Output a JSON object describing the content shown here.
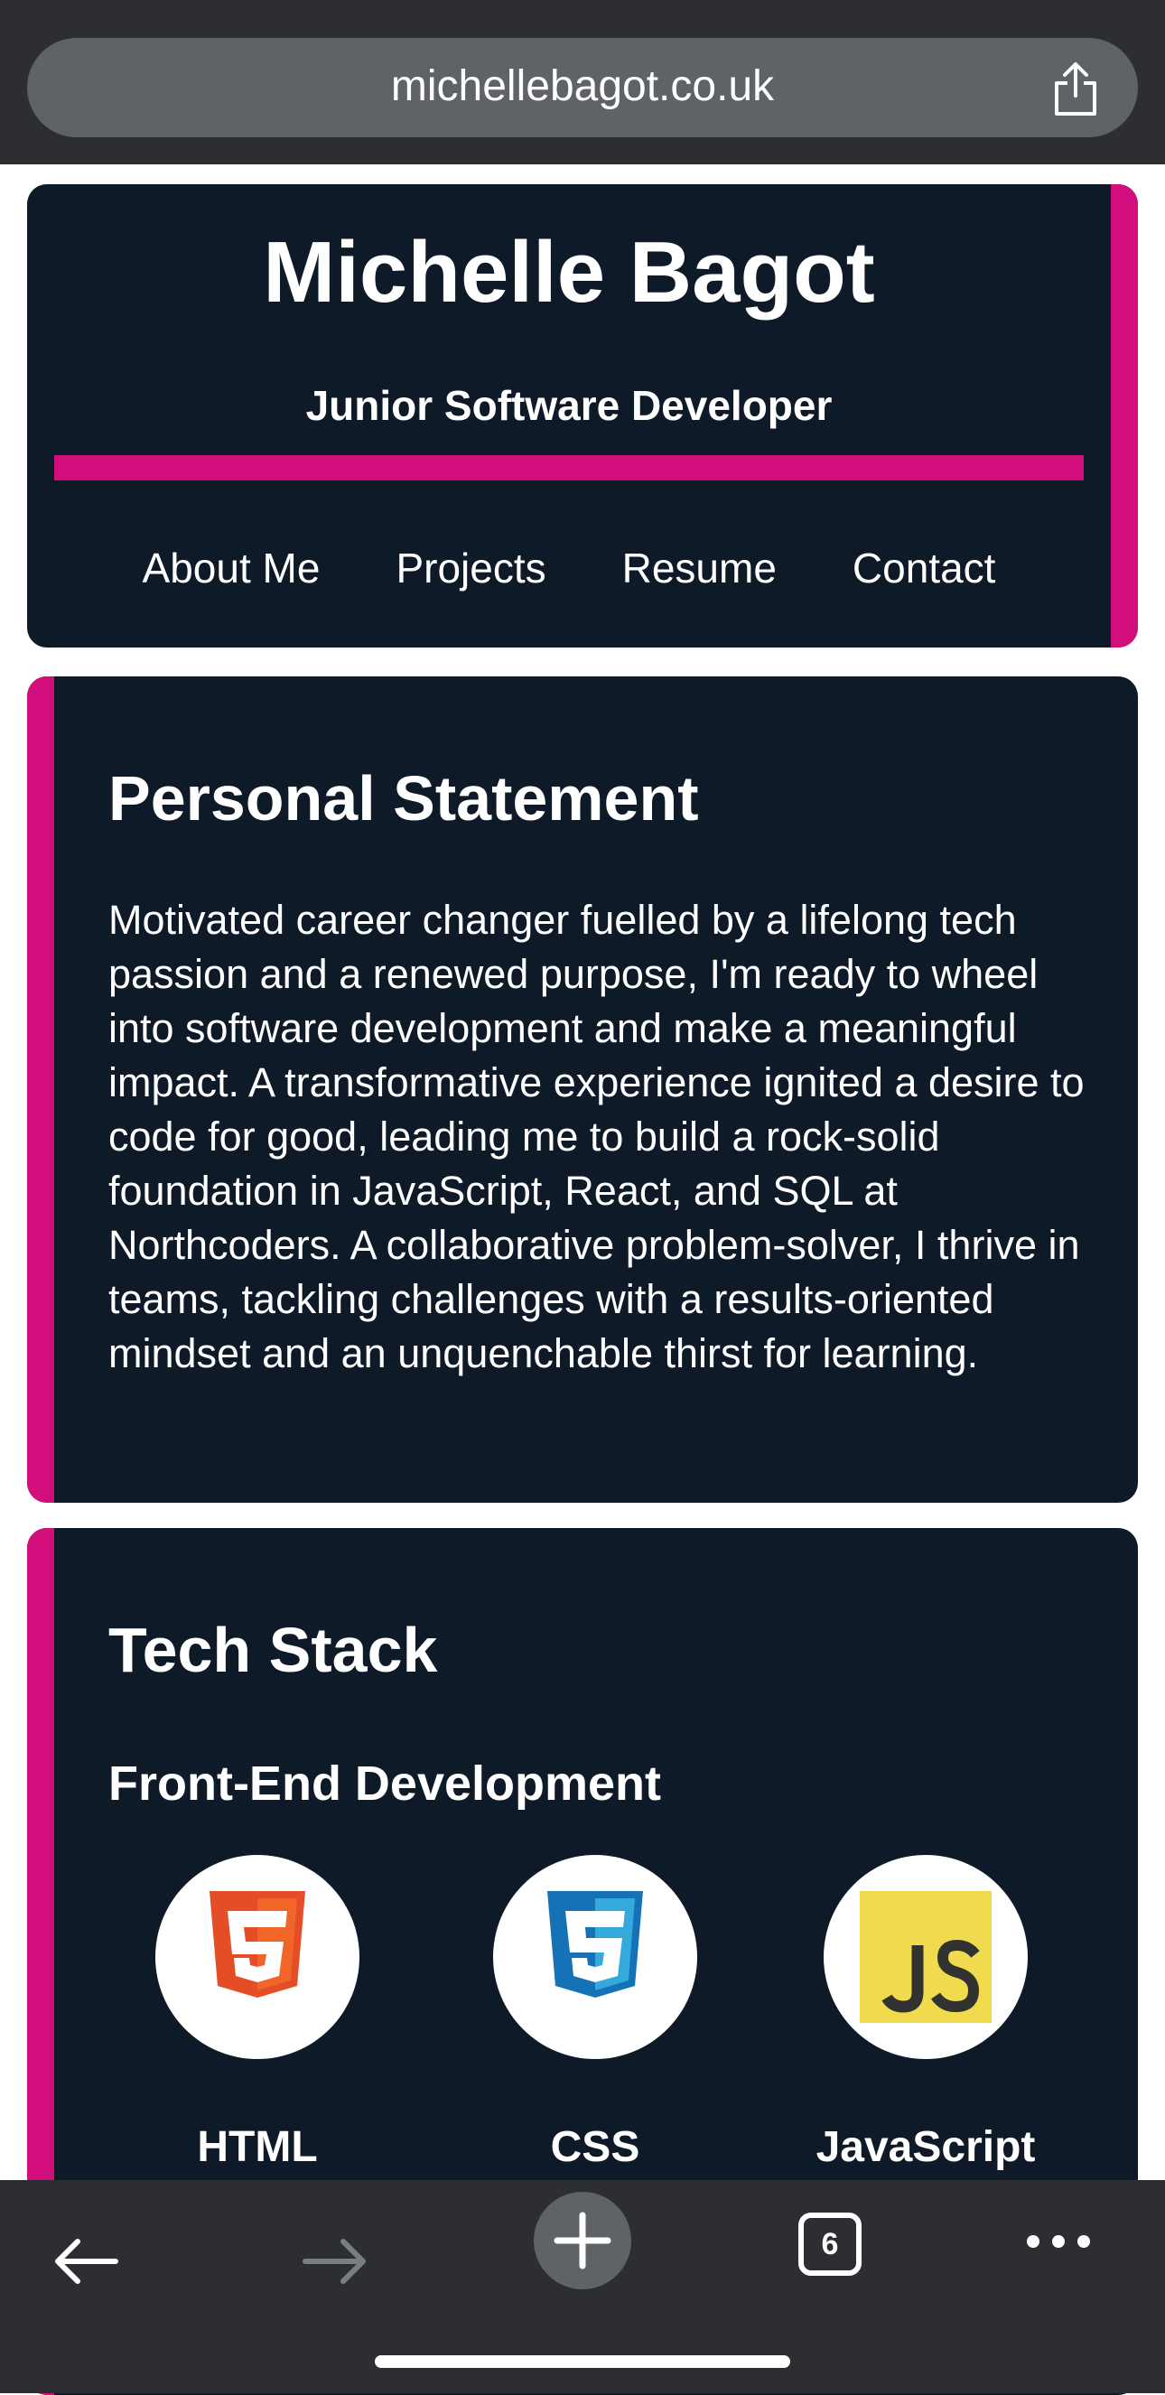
{
  "browser": {
    "url": "michellebagot.co.uk",
    "tab_count": "6"
  },
  "header": {
    "name": "Michelle Bagot",
    "role": "Junior Software Developer",
    "nav": [
      "About Me",
      "Projects",
      "Resume",
      "Contact"
    ]
  },
  "statement": {
    "heading": "Personal Statement",
    "text": "Motivated career changer fuelled by a lifelong tech passion and a renewed purpose, I'm ready to wheel into software development and make a meaningful impact. A transformative experience ignited a desire to code for good, leading me to build a rock-solid foundation in JavaScript, React, and SQL at Northcoders. A collaborative problem-solver, I thrive in teams, tackling challenges with a results-oriented mindset and an unquenchable thirst for learning."
  },
  "tech_stack": {
    "heading": "Tech Stack",
    "frontend_heading": "Front-End Development",
    "items": [
      {
        "label": "HTML",
        "icon": "html5-icon"
      },
      {
        "label": "CSS",
        "icon": "css3-icon"
      },
      {
        "label": "JavaScript",
        "icon": "javascript-icon"
      }
    ]
  },
  "colors": {
    "card_bg": "#0f1a29",
    "accent": "#d10e7c",
    "browser_chrome": "#2c2e31"
  }
}
